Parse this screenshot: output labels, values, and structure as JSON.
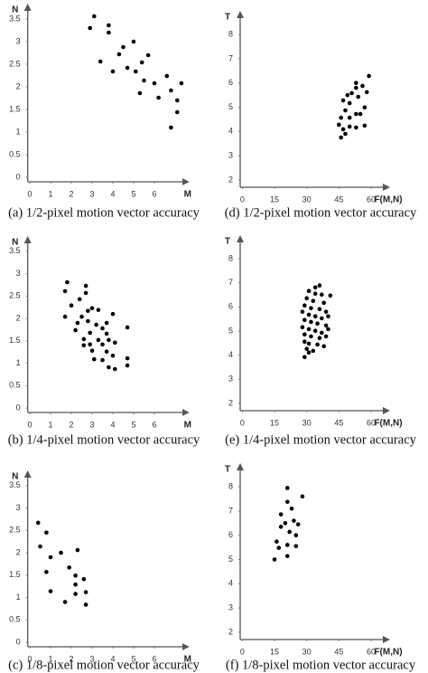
{
  "chart_data": [
    {
      "type": "scatter",
      "caption": "(a) 1/2-pixel motion vector accuracy",
      "xlabel": "M",
      "ylabel": "N",
      "color": "#000000",
      "x": [
        3.1,
        2.9,
        3.8,
        3.8,
        4.5,
        5.0,
        4.3,
        3.4,
        4.0,
        4.7,
        5.1,
        5.7,
        5.4,
        5.5,
        6.0,
        6.6,
        5.3,
        6.2,
        7.3,
        6.8,
        7.1,
        7.1,
        6.8
      ],
      "values": [
        3.56,
        3.3,
        3.36,
        3.2,
        2.88,
        3.0,
        2.72,
        2.56,
        2.34,
        2.42,
        2.34,
        2.7,
        2.54,
        2.14,
        2.08,
        2.24,
        1.86,
        1.76,
        2.08,
        1.92,
        1.7,
        1.44,
        1.1
      ],
      "xlim": [
        -0.1,
        7.6
      ],
      "ylim": [
        -0.1,
        3.8
      ],
      "xticks": [
        0,
        1,
        2,
        3,
        4,
        5,
        6
      ],
      "yticks": [
        0,
        0.5,
        1,
        1.5,
        2,
        2.5,
        3,
        3.5
      ]
    },
    {
      "type": "scatter",
      "caption": "(b) 1/4-pixel motion vector accuracy",
      "xlabel": "M",
      "ylabel": "N",
      "color": "#000000",
      "x": [
        1.8,
        1.7,
        2.7,
        2.7,
        2.4,
        2.0,
        1.7,
        2.5,
        2.8,
        3.0,
        3.3,
        2.3,
        2.8,
        3.2,
        3.7,
        4.0,
        4.7,
        2.2,
        2.9,
        3.5,
        3.7,
        2.6,
        3.3,
        3.8,
        2.6,
        2.9,
        3.5,
        4.1,
        3.0,
        3.7,
        4.0,
        4.7,
        3.1,
        3.5,
        3.8,
        4.1,
        4.7
      ],
      "values": [
        2.81,
        2.61,
        2.73,
        2.57,
        2.43,
        2.29,
        2.04,
        2.04,
        2.17,
        2.23,
        2.19,
        1.9,
        1.94,
        1.86,
        1.9,
        2.1,
        1.8,
        1.74,
        1.68,
        1.78,
        1.66,
        1.54,
        1.52,
        1.52,
        1.4,
        1.42,
        1.42,
        1.46,
        1.28,
        1.26,
        1.17,
        1.11,
        1.09,
        1.07,
        0.91,
        0.87,
        0.95
      ],
      "xlim": [
        -0.1,
        7.6
      ],
      "ylim": [
        -0.1,
        3.8
      ],
      "xticks": [
        0,
        1,
        2,
        3,
        4,
        5,
        6
      ],
      "yticks": [
        0,
        0.5,
        1,
        1.5,
        2,
        2.5,
        3,
        3.5
      ]
    },
    {
      "type": "scatter",
      "caption": "(c) 1/8-pixel motion vector accuracy",
      "xlabel": "M",
      "ylabel": "N",
      "color": "#000000",
      "x": [
        0.4,
        0.8,
        0.5,
        1.0,
        0.8,
        1.0,
        1.5,
        2.3,
        1.9,
        2.2,
        2.6,
        1.7,
        2.2,
        2.2,
        2.7,
        2.7
      ],
      "values": [
        2.67,
        2.45,
        2.14,
        1.9,
        1.57,
        1.14,
        2.0,
        2.06,
        1.67,
        1.49,
        1.41,
        0.9,
        1.08,
        1.29,
        1.12,
        0.84
      ],
      "xlim": [
        -0.1,
        7.6
      ],
      "ylim": [
        -0.1,
        3.8
      ],
      "xticks": [
        0,
        1,
        2,
        3,
        4,
        5,
        6
      ],
      "yticks": [
        0,
        0.5,
        1,
        1.5,
        2,
        2.5,
        3,
        3.5
      ]
    },
    {
      "type": "scatter",
      "caption": "(d) 1/2-pixel motion vector accuracy",
      "xlabel": "F(M,N)",
      "ylabel": "T",
      "color": "#000000",
      "x": [
        59,
        53,
        56,
        53,
        49,
        51,
        54,
        58,
        47,
        50,
        48,
        53,
        50,
        55,
        57,
        46,
        47,
        50,
        53,
        57,
        45,
        46,
        48
      ],
      "values": [
        6.29,
        5.8,
        5.88,
        6.0,
        5.5,
        5.58,
        5.43,
        5.62,
        5.28,
        5.17,
        4.87,
        4.72,
        4.57,
        4.72,
        4.99,
        4.57,
        4.09,
        4.2,
        4.16,
        4.24,
        4.28,
        3.75,
        3.9
      ],
      "xlim": [
        -1,
        68
      ],
      "ylim": [
        1.7,
        8.9
      ],
      "xticks": [
        0,
        15,
        30,
        45,
        60
      ],
      "yticks": [
        2,
        3,
        4,
        5,
        6,
        7,
        8
      ]
    },
    {
      "type": "scatter",
      "caption": "(e) 1/4-pixel motion vector accuracy",
      "xlabel": "F(M,N)",
      "ylabel": "T",
      "color": "#000000",
      "x": [
        36,
        31,
        34,
        37,
        30,
        33,
        38,
        41,
        29,
        32,
        36,
        39,
        31,
        34,
        37,
        40,
        29,
        32,
        35,
        39,
        28,
        31,
        34,
        37,
        40,
        29,
        32,
        36,
        39,
        29,
        31,
        35,
        38,
        30,
        33,
        29,
        31,
        28,
        34
      ],
      "values": [
        6.89,
        6.66,
        6.55,
        6.51,
        6.36,
        6.25,
        6.17,
        6.47,
        6.06,
        5.95,
        5.91,
        5.8,
        5.68,
        5.61,
        5.53,
        5.61,
        5.46,
        5.38,
        5.31,
        5.23,
        5.16,
        5.08,
        5.01,
        4.93,
        5.08,
        4.86,
        4.78,
        4.71,
        4.78,
        4.56,
        4.48,
        4.44,
        4.37,
        4.26,
        4.18,
        3.92,
        4.11,
        5.8,
        6.81
      ],
      "xlim": [
        -1,
        68
      ],
      "ylim": [
        1.7,
        8.9
      ],
      "xticks": [
        0,
        15,
        30,
        45,
        60
      ],
      "yticks": [
        2,
        3,
        4,
        5,
        6,
        7,
        8
      ]
    },
    {
      "type": "scatter",
      "caption": "(f) 1/8-pixel motion vector accuracy",
      "xlabel": "F(M,N)",
      "ylabel": "T",
      "color": "#000000",
      "x": [
        21,
        28,
        21,
        23,
        18,
        20,
        24,
        18,
        22,
        16,
        21,
        25,
        17,
        25,
        21,
        15,
        26
      ],
      "values": [
        7.95,
        7.6,
        7.38,
        7.1,
        6.86,
        6.5,
        6.6,
        6.35,
        6.14,
        5.74,
        5.6,
        5.55,
        5.48,
        6.0,
        5.14,
        5.0,
        6.45
      ],
      "xlim": [
        -1,
        68
      ],
      "ylim": [
        1.7,
        8.9
      ],
      "xticks": [
        0,
        15,
        30,
        45,
        60
      ],
      "yticks": [
        2,
        3,
        4,
        5,
        6,
        7,
        8
      ]
    }
  ]
}
